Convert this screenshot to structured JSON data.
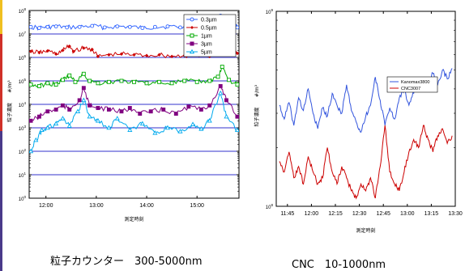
{
  "colors": {
    "accent_top": "#f0c020",
    "accent_mid": "#d03028",
    "accent_bot": "#4a3a8a"
  },
  "captions": {
    "left": "粒子カウンター　300-5000nm",
    "right": "CNC　10-1000nm"
  },
  "chart_data": [
    {
      "type": "line",
      "title": "",
      "xlabel": "測定時刻",
      "ylabel": "粒子濃度",
      "yunit": "#/m³",
      "y_scale": "log",
      "ylim": [
        1,
        100000000
      ],
      "xlim": [
        "11:40",
        "15:50"
      ],
      "x_ticks": [
        "12:00",
        "13:00",
        "14:00",
        "15:00"
      ],
      "y_tick_exponents": [
        0,
        1,
        2,
        3,
        4,
        5,
        6,
        7,
        8
      ],
      "y_tick_base": "10",
      "grid": "horizontal",
      "legend_position": "top-right",
      "series": [
        {
          "name": "0.3µm",
          "color": "#3366ff",
          "marker": "circle",
          "points": [
            [
              "11:42",
              20000000.0
            ],
            [
              "11:52",
              18000000.0
            ],
            [
              "12:02",
              20000000.0
            ],
            [
              "12:12",
              21000000.0
            ],
            [
              "12:25",
              19000000.0
            ],
            [
              "12:40",
              20000000.0
            ],
            [
              "12:55",
              22000000.0
            ],
            [
              "13:10",
              19000000.0
            ],
            [
              "13:25",
              21000000.0
            ],
            [
              "13:40",
              20000000.0
            ],
            [
              "13:55",
              18000000.0
            ],
            [
              "14:10",
              20000000.0
            ],
            [
              "14:25",
              21000000.0
            ],
            [
              "14:40",
              19000000.0
            ],
            [
              "14:55",
              20000000.0
            ],
            [
              "15:10",
              19000000.0
            ],
            [
              "15:22",
              21000000.0
            ],
            [
              "15:28",
              60000000.0
            ],
            [
              "15:33",
              20000000.0
            ],
            [
              "15:45",
              23000000.0
            ],
            [
              "15:48",
              19000000.0
            ]
          ]
        },
        {
          "name": "0.5µm",
          "color": "#cc0000",
          "marker": "diamond",
          "points": [
            [
              "11:42",
              1800000.0
            ],
            [
              "11:52",
              1600000.0
            ],
            [
              "12:02",
              1900000.0
            ],
            [
              "12:12",
              1400000.0
            ],
            [
              "12:20",
              2000000.0
            ],
            [
              "12:28",
              3000000.0
            ],
            [
              "12:33",
              1800000.0
            ],
            [
              "12:45",
              2500000.0
            ],
            [
              "12:55",
              2200000.0
            ],
            [
              "13:02",
              1100000.0
            ],
            [
              "13:15",
              1300000.0
            ],
            [
              "13:30",
              1400000.0
            ],
            [
              "13:45",
              1300000.0
            ],
            [
              "14:00",
              1200000.0
            ],
            [
              "14:15",
              1300000.0
            ],
            [
              "14:30",
              1100000.0
            ],
            [
              "14:45",
              1200000.0
            ],
            [
              "15:00",
              1300000.0
            ],
            [
              "15:15",
              1100000.0
            ],
            [
              "15:25",
              1500000.0
            ],
            [
              "15:30",
              2000000.0
            ],
            [
              "15:40",
              3500000.0
            ],
            [
              "15:48",
              1500000.0
            ]
          ]
        },
        {
          "name": "1µm",
          "color": "#00aa00",
          "marker": "square",
          "points": [
            [
              "11:42",
              70000.0
            ],
            [
              "11:52",
              60000.0
            ],
            [
              "12:02",
              80000.0
            ],
            [
              "12:12",
              70000.0
            ],
            [
              "12:20",
              110000.0
            ],
            [
              "12:28",
              170000.0
            ],
            [
              "12:35",
              90000.0
            ],
            [
              "12:45",
              200000.0
            ],
            [
              "12:52",
              100000.0
            ],
            [
              "13:02",
              80000.0
            ],
            [
              "13:15",
              90000.0
            ],
            [
              "13:30",
              100000.0
            ],
            [
              "13:45",
              90000.0
            ],
            [
              "14:00",
              80000.0
            ],
            [
              "14:15",
              90000.0
            ],
            [
              "14:30",
              80000.0
            ],
            [
              "14:45",
              100000.0
            ],
            [
              "15:00",
              90000.0
            ],
            [
              "15:15",
              100000.0
            ],
            [
              "15:25",
              150000.0
            ],
            [
              "15:30",
              400000.0
            ],
            [
              "15:38",
              110000.0
            ],
            [
              "15:48",
              70000.0
            ]
          ]
        },
        {
          "name": "3µm",
          "color": "#800080",
          "marker": "square",
          "points": [
            [
              "11:42",
              2000.0
            ],
            [
              "11:52",
              3000.0
            ],
            [
              "12:02",
              5000.0
            ],
            [
              "12:12",
              6000.0
            ],
            [
              "12:20",
              9000.0
            ],
            [
              "12:28",
              6000.0
            ],
            [
              "12:40",
              15000.0
            ],
            [
              "12:45",
              50000.0
            ],
            [
              "12:52",
              9000.0
            ],
            [
              "13:02",
              7000.0
            ],
            [
              "13:15",
              6000.0
            ],
            [
              "13:30",
              5000.0
            ],
            [
              "13:40",
              7000.0
            ],
            [
              "13:52",
              4000.0
            ],
            [
              "14:05",
              5000.0
            ],
            [
              "14:20",
              6000.0
            ],
            [
              "14:35",
              4000.0
            ],
            [
              "14:50",
              8000.0
            ],
            [
              "15:05",
              6000.0
            ],
            [
              "15:15",
              9000.0
            ],
            [
              "15:28",
              60000.0
            ],
            [
              "15:35",
              15000.0
            ],
            [
              "15:48",
              3000.0
            ]
          ]
        },
        {
          "name": "5µm",
          "color": "#00aaee",
          "marker": "triangle",
          "points": [
            [
              "11:42",
              100.0
            ],
            [
              "11:48",
              300.0
            ],
            [
              "11:55",
              800.0
            ],
            [
              "12:02",
              1000.0
            ],
            [
              "12:12",
              1500.0
            ],
            [
              "12:20",
              2500.0
            ],
            [
              "12:28",
              1200.0
            ],
            [
              "12:38",
              5000.0
            ],
            [
              "12:45",
              15000.0
            ],
            [
              "12:52",
              3000.0
            ],
            [
              "13:02",
              2000.0
            ],
            [
              "13:15",
              1000.0
            ],
            [
              "13:25",
              2500.0
            ],
            [
              "13:40",
              800.0
            ],
            [
              "13:55",
              1500.0
            ],
            [
              "14:10",
              600.0
            ],
            [
              "14:25",
              1000.0
            ],
            [
              "14:40",
              700.0
            ],
            [
              "14:55",
              1400.0
            ],
            [
              "15:05",
              900.0
            ],
            [
              "15:15",
              2000.0
            ],
            [
              "15:28",
              30000.0
            ],
            [
              "15:35",
              3000.0
            ],
            [
              "15:48",
              800.0
            ]
          ]
        }
      ]
    },
    {
      "type": "line",
      "title": "",
      "xlabel": "測定時刻",
      "ylabel": "粒子濃度",
      "yunit": "#/m³",
      "y_scale": "log",
      "ylim": [
        100000000,
        1000000000
      ],
      "xlim": [
        "11:38",
        "13:30"
      ],
      "x_ticks": [
        "11:45",
        "12:00",
        "12:15",
        "12:30",
        "12:45",
        "13:00",
        "13:15",
        "13:30"
      ],
      "y_tick_exponents": [
        8,
        9
      ],
      "y_tick_base": "10",
      "grid": "none",
      "legend_position": "top-right",
      "series": [
        {
          "name": "Kanomax3800",
          "color": "#3355dd",
          "points": [
            [
              "11:40",
              330000000.0
            ],
            [
              "11:43",
              280000000.0
            ],
            [
              "11:46",
              340000000.0
            ],
            [
              "11:49",
              260000000.0
            ],
            [
              "11:52",
              360000000.0
            ],
            [
              "11:55",
              310000000.0
            ],
            [
              "11:58",
              400000000.0
            ],
            [
              "12:01",
              300000000.0
            ],
            [
              "12:04",
              250000000.0
            ],
            [
              "12:07",
              320000000.0
            ],
            [
              "12:10",
              290000000.0
            ],
            [
              "12:13",
              380000000.0
            ],
            [
              "12:16",
              330000000.0
            ],
            [
              "12:19",
              300000000.0
            ],
            [
              "12:22",
              420000000.0
            ],
            [
              "12:25",
              310000000.0
            ],
            [
              "12:28",
              270000000.0
            ],
            [
              "12:31",
              240000000.0
            ],
            [
              "12:34",
              290000000.0
            ],
            [
              "12:37",
              330000000.0
            ],
            [
              "12:40",
              460000000.0
            ],
            [
              "12:43",
              350000000.0
            ],
            [
              "12:46",
              260000000.0
            ],
            [
              "12:49",
              320000000.0
            ],
            [
              "12:52",
              280000000.0
            ],
            [
              "12:55",
              360000000.0
            ],
            [
              "12:58",
              400000000.0
            ],
            [
              "13:01",
              330000000.0
            ],
            [
              "13:04",
              380000000.0
            ],
            [
              "13:07",
              440000000.0
            ],
            [
              "13:10",
              390000000.0
            ],
            [
              "13:13",
              430000000.0
            ],
            [
              "13:16",
              480000000.0
            ],
            [
              "13:19",
              420000000.0
            ],
            [
              "13:22",
              500000000.0
            ],
            [
              "13:25",
              450000000.0
            ],
            [
              "13:28",
              510000000.0
            ]
          ]
        },
        {
          "name": "CNC3007",
          "color": "#cc0000",
          "points": [
            [
              "11:40",
              170000000.0
            ],
            [
              "11:43",
              150000000.0
            ],
            [
              "11:46",
              190000000.0
            ],
            [
              "11:49",
              140000000.0
            ],
            [
              "11:52",
              160000000.0
            ],
            [
              "11:55",
              130000000.0
            ],
            [
              "11:58",
              180000000.0
            ],
            [
              "12:01",
              150000000.0
            ],
            [
              "12:04",
              130000000.0
            ],
            [
              "12:07",
              140000000.0
            ],
            [
              "12:10",
              200000000.0
            ],
            [
              "12:13",
              150000000.0
            ],
            [
              "12:16",
              130000000.0
            ],
            [
              "12:19",
              160000000.0
            ],
            [
              "12:22",
              140000000.0
            ],
            [
              "12:25",
              120000000.0
            ],
            [
              "12:28",
              110000000.0
            ],
            [
              "12:31",
              130000000.0
            ],
            [
              "12:34",
              120000000.0
            ],
            [
              "12:37",
              140000000.0
            ],
            [
              "12:40",
              110000000.0
            ],
            [
              "12:43",
              160000000.0
            ],
            [
              "12:46",
              260000000.0
            ],
            [
              "12:49",
              150000000.0
            ],
            [
              "12:52",
              130000000.0
            ],
            [
              "12:55",
              120000000.0
            ],
            [
              "12:58",
              150000000.0
            ],
            [
              "13:01",
              190000000.0
            ],
            [
              "13:04",
              220000000.0
            ],
            [
              "13:07",
              200000000.0
            ],
            [
              "13:10",
              260000000.0
            ],
            [
              "13:13",
              220000000.0
            ],
            [
              "13:16",
              190000000.0
            ],
            [
              "13:19",
              230000000.0
            ],
            [
              "13:22",
              250000000.0
            ],
            [
              "13:25",
              210000000.0
            ],
            [
              "13:28",
              230000000.0
            ]
          ]
        }
      ]
    }
  ]
}
